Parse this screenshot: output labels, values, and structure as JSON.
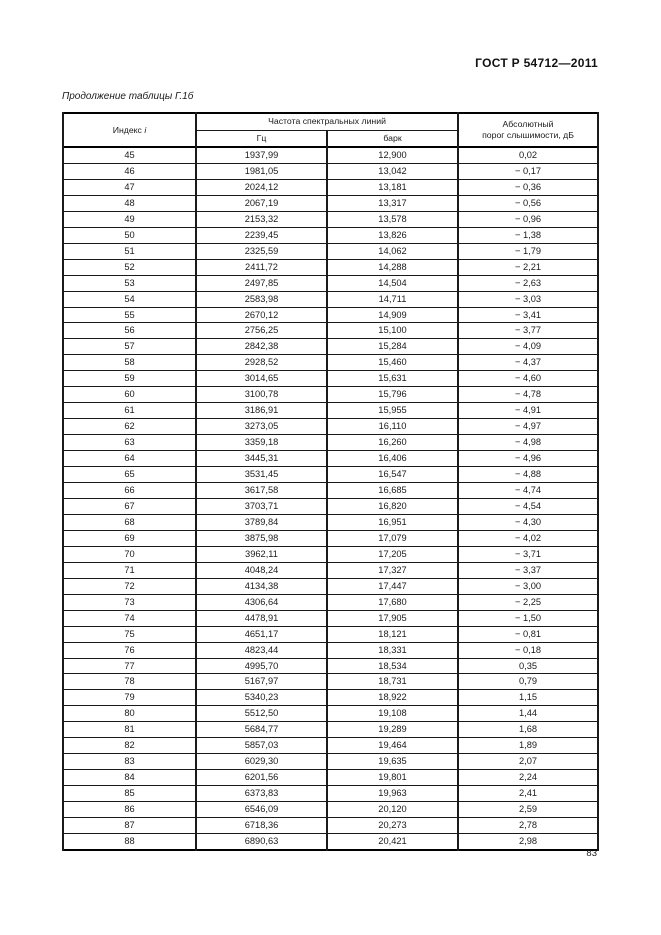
{
  "page": {
    "standard_number": "ГОСТ Р 54712—2011",
    "table_caption": "Продолжение таблицы Г.1б",
    "page_number": "83"
  },
  "table": {
    "headers": {
      "index_label": "Индекс",
      "index_var": "i",
      "frequency_group": "Частота спектральных линий",
      "hz": "Гц",
      "bark": "барк",
      "threshold_line1": "Абсолютный",
      "threshold_line2": "порог слышимости, дБ"
    },
    "rows": [
      [
        "45",
        "1937,99",
        "12,900",
        "0,02"
      ],
      [
        "46",
        "1981,05",
        "13,042",
        "− 0,17"
      ],
      [
        "47",
        "2024,12",
        "13,181",
        "− 0,36"
      ],
      [
        "48",
        "2067,19",
        "13,317",
        "− 0,56"
      ],
      [
        "49",
        "2153,32",
        "13,578",
        "− 0,96"
      ],
      [
        "50",
        "2239,45",
        "13,826",
        "− 1,38"
      ],
      [
        "51",
        "2325,59",
        "14,062",
        "− 1,79"
      ],
      [
        "52",
        "2411,72",
        "14,288",
        "− 2,21"
      ],
      [
        "53",
        "2497,85",
        "14,504",
        "− 2,63"
      ],
      [
        "54",
        "2583,98",
        "14,711",
        "− 3,03"
      ],
      [
        "55",
        "2670,12",
        "14,909",
        "− 3,41"
      ],
      [
        "56",
        "2756,25",
        "15,100",
        "− 3,77"
      ],
      [
        "57",
        "2842,38",
        "15,284",
        "− 4,09"
      ],
      [
        "58",
        "2928,52",
        "15,460",
        "− 4,37"
      ],
      [
        "59",
        "3014,65",
        "15,631",
        "− 4,60"
      ],
      [
        "60",
        "3100,78",
        "15,796",
        "− 4,78"
      ],
      [
        "61",
        "3186,91",
        "15,955",
        "− 4,91"
      ],
      [
        "62",
        "3273,05",
        "16,110",
        "− 4,97"
      ],
      [
        "63",
        "3359,18",
        "16,260",
        "− 4,98"
      ],
      [
        "64",
        "3445,31",
        "16,406",
        "− 4,96"
      ],
      [
        "65",
        "3531,45",
        "16,547",
        "− 4,88"
      ],
      [
        "66",
        "3617,58",
        "16,685",
        "− 4,74"
      ],
      [
        "67",
        "3703,71",
        "16,820",
        "− 4,54"
      ],
      [
        "68",
        "3789,84",
        "16,951",
        "− 4,30"
      ],
      [
        "69",
        "3875,98",
        "17,079",
        "− 4,02"
      ],
      [
        "70",
        "3962,11",
        "17,205",
        "− 3,71"
      ],
      [
        "71",
        "4048,24",
        "17,327",
        "− 3,37"
      ],
      [
        "72",
        "4134,38",
        "17,447",
        "− 3,00"
      ],
      [
        "73",
        "4306,64",
        "17,680",
        "− 2,25"
      ],
      [
        "74",
        "4478,91",
        "17,905",
        "− 1,50"
      ],
      [
        "75",
        "4651,17",
        "18,121",
        "− 0,81"
      ],
      [
        "76",
        "4823,44",
        "18,331",
        "− 0,18"
      ],
      [
        "77",
        "4995,70",
        "18,534",
        "0,35"
      ],
      [
        "78",
        "5167,97",
        "18,731",
        "0,79"
      ],
      [
        "79",
        "5340,23",
        "18,922",
        "1,15"
      ],
      [
        "80",
        "5512,50",
        "19,108",
        "1,44"
      ],
      [
        "81",
        "5684,77",
        "19,289",
        "1,68"
      ],
      [
        "82",
        "5857,03",
        "19,464",
        "1,89"
      ],
      [
        "83",
        "6029,30",
        "19,635",
        "2,07"
      ],
      [
        "84",
        "6201,56",
        "19,801",
        "2,24"
      ],
      [
        "85",
        "6373,83",
        "19,963",
        "2,41"
      ],
      [
        "86",
        "6546,09",
        "20,120",
        "2,59"
      ],
      [
        "87",
        "6718,36",
        "20,273",
        "2,78"
      ],
      [
        "88",
        "6890,63",
        "20,421",
        "2,98"
      ]
    ]
  }
}
